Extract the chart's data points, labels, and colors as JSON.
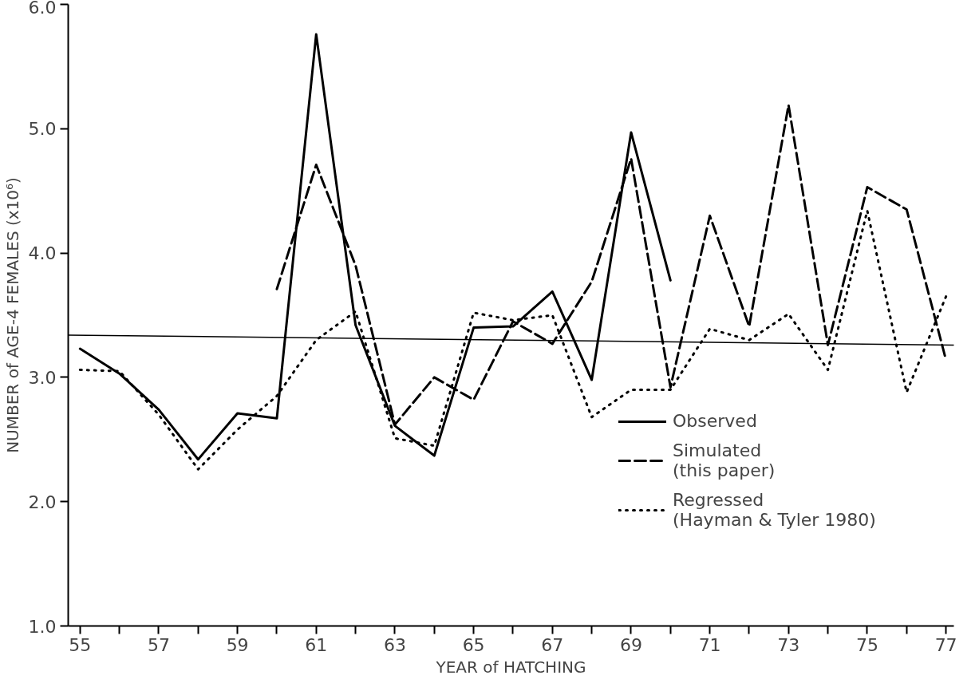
{
  "chart_data": {
    "type": "line",
    "xlabel": "YEAR of HATCHING",
    "ylabel": "NUMBER of AGE-4 FEMALES (x10⁶)",
    "xlim": [
      54.7,
      77.2
    ],
    "ylim": [
      1.0,
      6.0
    ],
    "xticks": [
      55,
      {
        "value": 56,
        "label": null
      },
      57,
      {
        "value": 58,
        "label": null
      },
      59,
      {
        "value": 60,
        "label": null
      },
      61,
      {
        "value": 62,
        "label": null
      },
      63,
      {
        "value": 64,
        "label": null
      },
      65,
      {
        "value": 66,
        "label": null
      },
      67,
      {
        "value": 68,
        "label": null
      },
      69,
      {
        "value": 70,
        "label": null
      },
      71,
      {
        "value": 72,
        "label": null
      },
      73,
      {
        "value": 74,
        "label": null
      },
      75,
      {
        "value": 76,
        "label": null
      },
      77
    ],
    "yticks": [
      {
        "value": 1,
        "label": "1.0"
      },
      {
        "value": 2,
        "label": "2.0"
      },
      {
        "value": 3,
        "label": "3.0"
      },
      {
        "value": 4,
        "label": "4.0"
      },
      {
        "value": 5,
        "label": "5.0"
      },
      {
        "value": 6,
        "label": "6.0"
      }
    ],
    "grid": false,
    "legend": "right",
    "marker": "none",
    "series": [
      {
        "name": "Observed",
        "color": "#000000",
        "line_style": "solid",
        "x": [
          55,
          56,
          57,
          58,
          59,
          60,
          61,
          62,
          63,
          64,
          65,
          66,
          67,
          68,
          69,
          70
        ],
        "values": [
          3.23,
          3.03,
          2.74,
          2.34,
          2.71,
          2.67,
          5.76,
          3.42,
          2.61,
          2.37,
          3.4,
          3.41,
          3.69,
          2.98,
          4.97,
          3.78
        ]
      },
      {
        "name": "Simulated\n(this paper)",
        "color": "#000000",
        "line_style": "dashed",
        "x": [
          60,
          61,
          62,
          63,
          64,
          65,
          66,
          67,
          68,
          69,
          70,
          71,
          72,
          73,
          74,
          75,
          76,
          77
        ],
        "values": [
          3.71,
          4.71,
          3.9,
          2.62,
          3.0,
          2.82,
          3.45,
          3.27,
          3.77,
          4.76,
          2.92,
          4.3,
          3.41,
          5.19,
          3.26,
          4.53,
          4.35,
          3.14
        ]
      },
      {
        "name": "Regressed\n(Hayman & Tyler 1980)",
        "color": "#000000",
        "line_style": "dotted",
        "x": [
          55,
          56,
          57,
          58,
          59,
          60,
          61,
          62,
          63,
          64,
          65,
          66,
          67,
          68,
          69,
          70,
          71,
          72,
          73,
          74,
          75,
          76,
          77
        ],
        "values": [
          3.06,
          3.05,
          2.7,
          2.26,
          2.58,
          2.85,
          3.3,
          3.53,
          2.51,
          2.45,
          3.52,
          3.46,
          3.5,
          2.68,
          2.9,
          2.9,
          3.39,
          3.3,
          3.51,
          3.06,
          4.34,
          2.88,
          3.65
        ]
      },
      {
        "color": "#000000",
        "line_style": "solid",
        "x": [
          54.7,
          77.2
        ],
        "values": [
          3.34,
          3.26
        ]
      }
    ]
  }
}
